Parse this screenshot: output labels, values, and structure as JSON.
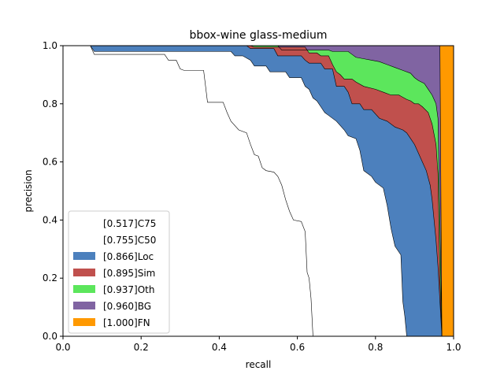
{
  "chart_data": {
    "type": "area",
    "title": "bbox-wine glass-medium",
    "xlabel": "recall",
    "ylabel": "precision",
    "xlim": [
      0,
      1
    ],
    "ylim": [
      0,
      1
    ],
    "xticks": [
      "0.0",
      "0.2",
      "0.4",
      "0.6",
      "0.8",
      "1.0"
    ],
    "yticks": [
      "0.0",
      "0.2",
      "0.4",
      "0.6",
      "0.8",
      "1.0"
    ],
    "grid": false,
    "legend_position": "lower-left",
    "legend": [
      {
        "label": "[0.517]C75",
        "color": "#ffffff"
      },
      {
        "label": "[0.755]C50",
        "color": "#ffffff"
      },
      {
        "label": "[0.866]Loc",
        "color": "#4c80bd"
      },
      {
        "label": "[0.895]Sim",
        "color": "#c0504d"
      },
      {
        "label": "[0.937]Oth",
        "color": "#5ce65c"
      },
      {
        "label": "[0.960]BG",
        "color": "#8064a2"
      },
      {
        "label": "[1.000]FN",
        "color": "#ff9900"
      }
    ],
    "series": [
      {
        "name": "[0.517]C75",
        "color": "#ffffff",
        "points": [
          [
            0.0,
            1.0
          ],
          [
            0.07,
            1.0
          ],
          [
            0.08,
            0.97
          ],
          [
            0.26,
            0.97
          ],
          [
            0.27,
            0.95
          ],
          [
            0.29,
            0.95
          ],
          [
            0.3,
            0.92
          ],
          [
            0.31,
            0.915
          ],
          [
            0.36,
            0.915
          ],
          [
            0.37,
            0.805
          ],
          [
            0.41,
            0.805
          ],
          [
            0.42,
            0.77
          ],
          [
            0.43,
            0.74
          ],
          [
            0.45,
            0.71
          ],
          [
            0.47,
            0.7
          ],
          [
            0.48,
            0.66
          ],
          [
            0.49,
            0.625
          ],
          [
            0.5,
            0.62
          ],
          [
            0.51,
            0.58
          ],
          [
            0.52,
            0.57
          ],
          [
            0.54,
            0.565
          ],
          [
            0.55,
            0.55
          ],
          [
            0.56,
            0.52
          ],
          [
            0.57,
            0.47
          ],
          [
            0.58,
            0.43
          ],
          [
            0.59,
            0.4
          ],
          [
            0.61,
            0.395
          ],
          [
            0.62,
            0.36
          ],
          [
            0.625,
            0.22
          ],
          [
            0.63,
            0.2
          ],
          [
            0.635,
            0.13
          ],
          [
            0.64,
            0.0
          ]
        ]
      },
      {
        "name": "[0.755]C50",
        "color": "#ffffff",
        "points": [
          [
            0.0,
            1.0
          ],
          [
            0.07,
            1.0
          ],
          [
            0.08,
            0.98
          ],
          [
            0.43,
            0.98
          ],
          [
            0.44,
            0.965
          ],
          [
            0.46,
            0.965
          ],
          [
            0.48,
            0.95
          ],
          [
            0.49,
            0.93
          ],
          [
            0.52,
            0.93
          ],
          [
            0.53,
            0.91
          ],
          [
            0.57,
            0.91
          ],
          [
            0.58,
            0.89
          ],
          [
            0.61,
            0.89
          ],
          [
            0.62,
            0.86
          ],
          [
            0.63,
            0.85
          ],
          [
            0.64,
            0.82
          ],
          [
            0.65,
            0.81
          ],
          [
            0.66,
            0.79
          ],
          [
            0.67,
            0.77
          ],
          [
            0.68,
            0.76
          ],
          [
            0.7,
            0.74
          ],
          [
            0.72,
            0.71
          ],
          [
            0.73,
            0.69
          ],
          [
            0.75,
            0.68
          ],
          [
            0.76,
            0.64
          ],
          [
            0.77,
            0.57
          ],
          [
            0.79,
            0.55
          ],
          [
            0.8,
            0.53
          ],
          [
            0.82,
            0.51
          ],
          [
            0.83,
            0.45
          ],
          [
            0.84,
            0.37
          ],
          [
            0.85,
            0.31
          ],
          [
            0.86,
            0.29
          ],
          [
            0.865,
            0.28
          ],
          [
            0.87,
            0.12
          ],
          [
            0.875,
            0.07
          ],
          [
            0.88,
            0.0
          ]
        ]
      },
      {
        "name": "[0.866]Loc",
        "color": "#4c80bd",
        "points": [
          [
            0.0,
            1.0
          ],
          [
            0.47,
            1.0
          ],
          [
            0.48,
            0.99
          ],
          [
            0.54,
            0.99
          ],
          [
            0.55,
            0.965
          ],
          [
            0.61,
            0.965
          ],
          [
            0.62,
            0.95
          ],
          [
            0.63,
            0.94
          ],
          [
            0.66,
            0.94
          ],
          [
            0.67,
            0.92
          ],
          [
            0.69,
            0.92
          ],
          [
            0.7,
            0.86
          ],
          [
            0.72,
            0.86
          ],
          [
            0.73,
            0.84
          ],
          [
            0.74,
            0.8
          ],
          [
            0.76,
            0.8
          ],
          [
            0.77,
            0.78
          ],
          [
            0.79,
            0.78
          ],
          [
            0.81,
            0.75
          ],
          [
            0.83,
            0.74
          ],
          [
            0.85,
            0.72
          ],
          [
            0.87,
            0.71
          ],
          [
            0.88,
            0.7
          ],
          [
            0.89,
            0.68
          ],
          [
            0.9,
            0.66
          ],
          [
            0.91,
            0.63
          ],
          [
            0.92,
            0.6
          ],
          [
            0.93,
            0.57
          ],
          [
            0.94,
            0.52
          ],
          [
            0.945,
            0.47
          ],
          [
            0.95,
            0.4
          ],
          [
            0.955,
            0.33
          ],
          [
            0.96,
            0.24
          ],
          [
            0.965,
            0.12
          ],
          [
            0.97,
            0.0
          ]
        ]
      },
      {
        "name": "[0.895]Sim",
        "color": "#c0504d",
        "points": [
          [
            0.0,
            1.0
          ],
          [
            0.48,
            1.0
          ],
          [
            0.49,
            0.995
          ],
          [
            0.62,
            0.995
          ],
          [
            0.63,
            0.975
          ],
          [
            0.65,
            0.975
          ],
          [
            0.66,
            0.965
          ],
          [
            0.68,
            0.965
          ],
          [
            0.69,
            0.935
          ],
          [
            0.7,
            0.91
          ],
          [
            0.71,
            0.9
          ],
          [
            0.72,
            0.885
          ],
          [
            0.74,
            0.885
          ],
          [
            0.75,
            0.875
          ],
          [
            0.77,
            0.86
          ],
          [
            0.8,
            0.85
          ],
          [
            0.82,
            0.84
          ],
          [
            0.84,
            0.83
          ],
          [
            0.86,
            0.83
          ],
          [
            0.88,
            0.815
          ],
          [
            0.89,
            0.81
          ],
          [
            0.9,
            0.8
          ],
          [
            0.91,
            0.8
          ],
          [
            0.92,
            0.79
          ],
          [
            0.935,
            0.77
          ],
          [
            0.945,
            0.73
          ],
          [
            0.955,
            0.66
          ],
          [
            0.96,
            0.56
          ],
          [
            0.965,
            0.2
          ],
          [
            0.97,
            0.0
          ]
        ]
      },
      {
        "name": "[0.937]Oth",
        "color": "#5ce65c",
        "points": [
          [
            0.0,
            1.0
          ],
          [
            0.55,
            1.0
          ],
          [
            0.56,
            0.985
          ],
          [
            0.63,
            0.985
          ],
          [
            0.64,
            0.985
          ],
          [
            0.68,
            0.985
          ],
          [
            0.69,
            0.98
          ],
          [
            0.73,
            0.98
          ],
          [
            0.74,
            0.97
          ],
          [
            0.75,
            0.96
          ],
          [
            0.77,
            0.955
          ],
          [
            0.79,
            0.95
          ],
          [
            0.81,
            0.945
          ],
          [
            0.83,
            0.935
          ],
          [
            0.85,
            0.925
          ],
          [
            0.87,
            0.915
          ],
          [
            0.89,
            0.905
          ],
          [
            0.9,
            0.89
          ],
          [
            0.91,
            0.88
          ],
          [
            0.925,
            0.87
          ],
          [
            0.935,
            0.85
          ],
          [
            0.945,
            0.83
          ],
          [
            0.955,
            0.8
          ],
          [
            0.96,
            0.75
          ],
          [
            0.965,
            0.4
          ],
          [
            0.97,
            0.0
          ]
        ]
      },
      {
        "name": "[0.960]BG",
        "color": "#8064a2",
        "points": [
          [
            0.0,
            1.0
          ],
          [
            0.965,
            1.0
          ],
          [
            0.97,
            0.0
          ]
        ]
      },
      {
        "name": "[1.000]FN",
        "color": "#ff9900",
        "points": [
          [
            0.0,
            1.0
          ],
          [
            1.0,
            1.0
          ],
          [
            1.0,
            0.0
          ]
        ]
      }
    ]
  }
}
